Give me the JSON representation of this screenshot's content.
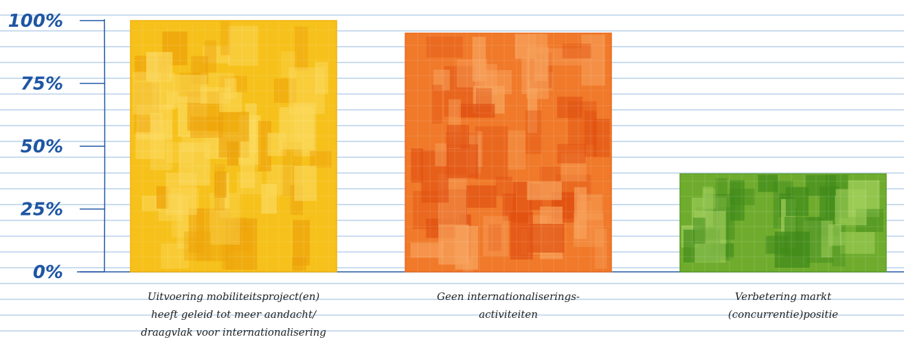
{
  "chart_data": {
    "type": "bar",
    "title": "",
    "xlabel": "",
    "ylabel": "",
    "ylim": [
      0,
      100
    ],
    "yticks": [
      "0%",
      "25%",
      "50%",
      "75%",
      "100%"
    ],
    "categories": [
      [
        "Uitvoering mobiliteitsproject(en)",
        "heeft geleid tot meer aandacht/",
        "draagvlak voor internationalisering"
      ],
      [
        "Geen internationaliserings-",
        "activiteiten"
      ],
      [
        "Verbetering markt",
        "(concurrentie)positie"
      ]
    ],
    "values": [
      100,
      95,
      39
    ],
    "colors": [
      {
        "base": "#f6c11a",
        "light": "#fbd85a",
        "dark": "#eda20a",
        "edge": "#f0b010"
      },
      {
        "base": "#f0792a",
        "light": "#f7a25c",
        "dark": "#e04f10",
        "edge": "#e86a20"
      },
      {
        "base": "#6fac2e",
        "light": "#a2cf5c",
        "dark": "#3f8a1a",
        "edge": "#5a9a24"
      }
    ],
    "axis_color": "#1f56a3"
  }
}
